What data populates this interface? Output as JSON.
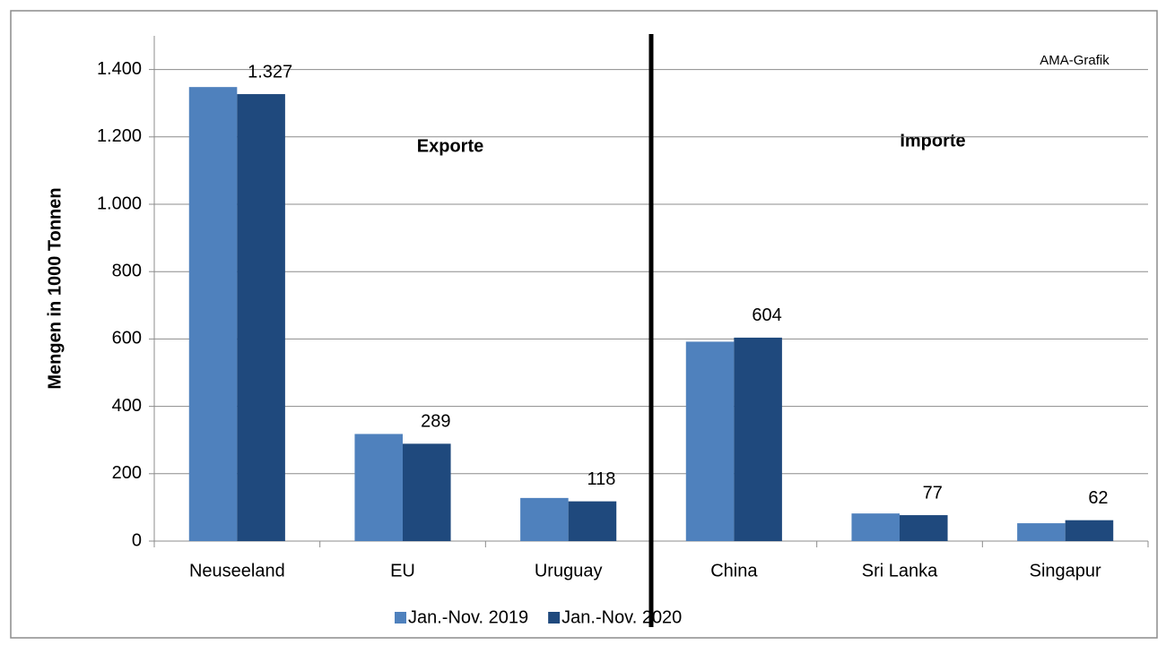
{
  "chart_data": {
    "type": "bar",
    "y_label": "Mengen in 1000 Tonnen",
    "annotations": [
      "Exporte",
      "Importe",
      "AMA-Grafik"
    ],
    "categories": [
      "Neuseeland",
      "EU",
      "Uruguay",
      "China",
      "Sri Lanka",
      "Singapur"
    ],
    "series": [
      {
        "name": "Jan.-Nov. 2019",
        "color": "#4f81bd",
        "values": [
          1348,
          318,
          128,
          592,
          82,
          53
        ]
      },
      {
        "name": "Jan.-Nov. 2020",
        "color": "#1f497d",
        "values": [
          1327,
          289,
          118,
          604,
          77,
          62
        ],
        "value_labels": [
          "1.327",
          "289",
          "118",
          "604",
          "77",
          "62"
        ]
      }
    ],
    "ylim": [
      0,
      1500
    ],
    "yticks": [
      0,
      200,
      400,
      600,
      800,
      {
        "value": 1000,
        "label": "1.000"
      },
      {
        "value": 1200,
        "label": "1.200"
      },
      {
        "value": 1400,
        "label": "1.400"
      }
    ],
    "grid": true,
    "legend": "bottom"
  }
}
